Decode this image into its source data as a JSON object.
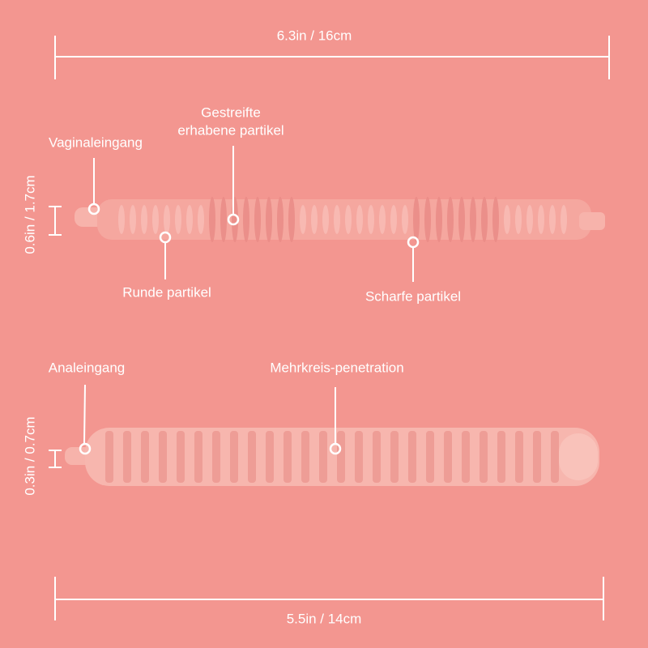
{
  "dimensions": {
    "top_length": "6.3in / 16cm",
    "top_height": "0.6in / 1.7cm",
    "bottom_height": "0.3in / 0.7cm",
    "bottom_length": "5.5in / 14cm"
  },
  "callouts": {
    "vaginal_entrance": "Vaginaleingang",
    "striped_particles": [
      "Gestreifte",
      "erhabene partikel"
    ],
    "round_particles": "Runde partikel",
    "sharp_particles": "Scharfe partikel",
    "anal_entrance": "Analeingang",
    "multi_circle": "Mehrkreis-penetration"
  }
}
